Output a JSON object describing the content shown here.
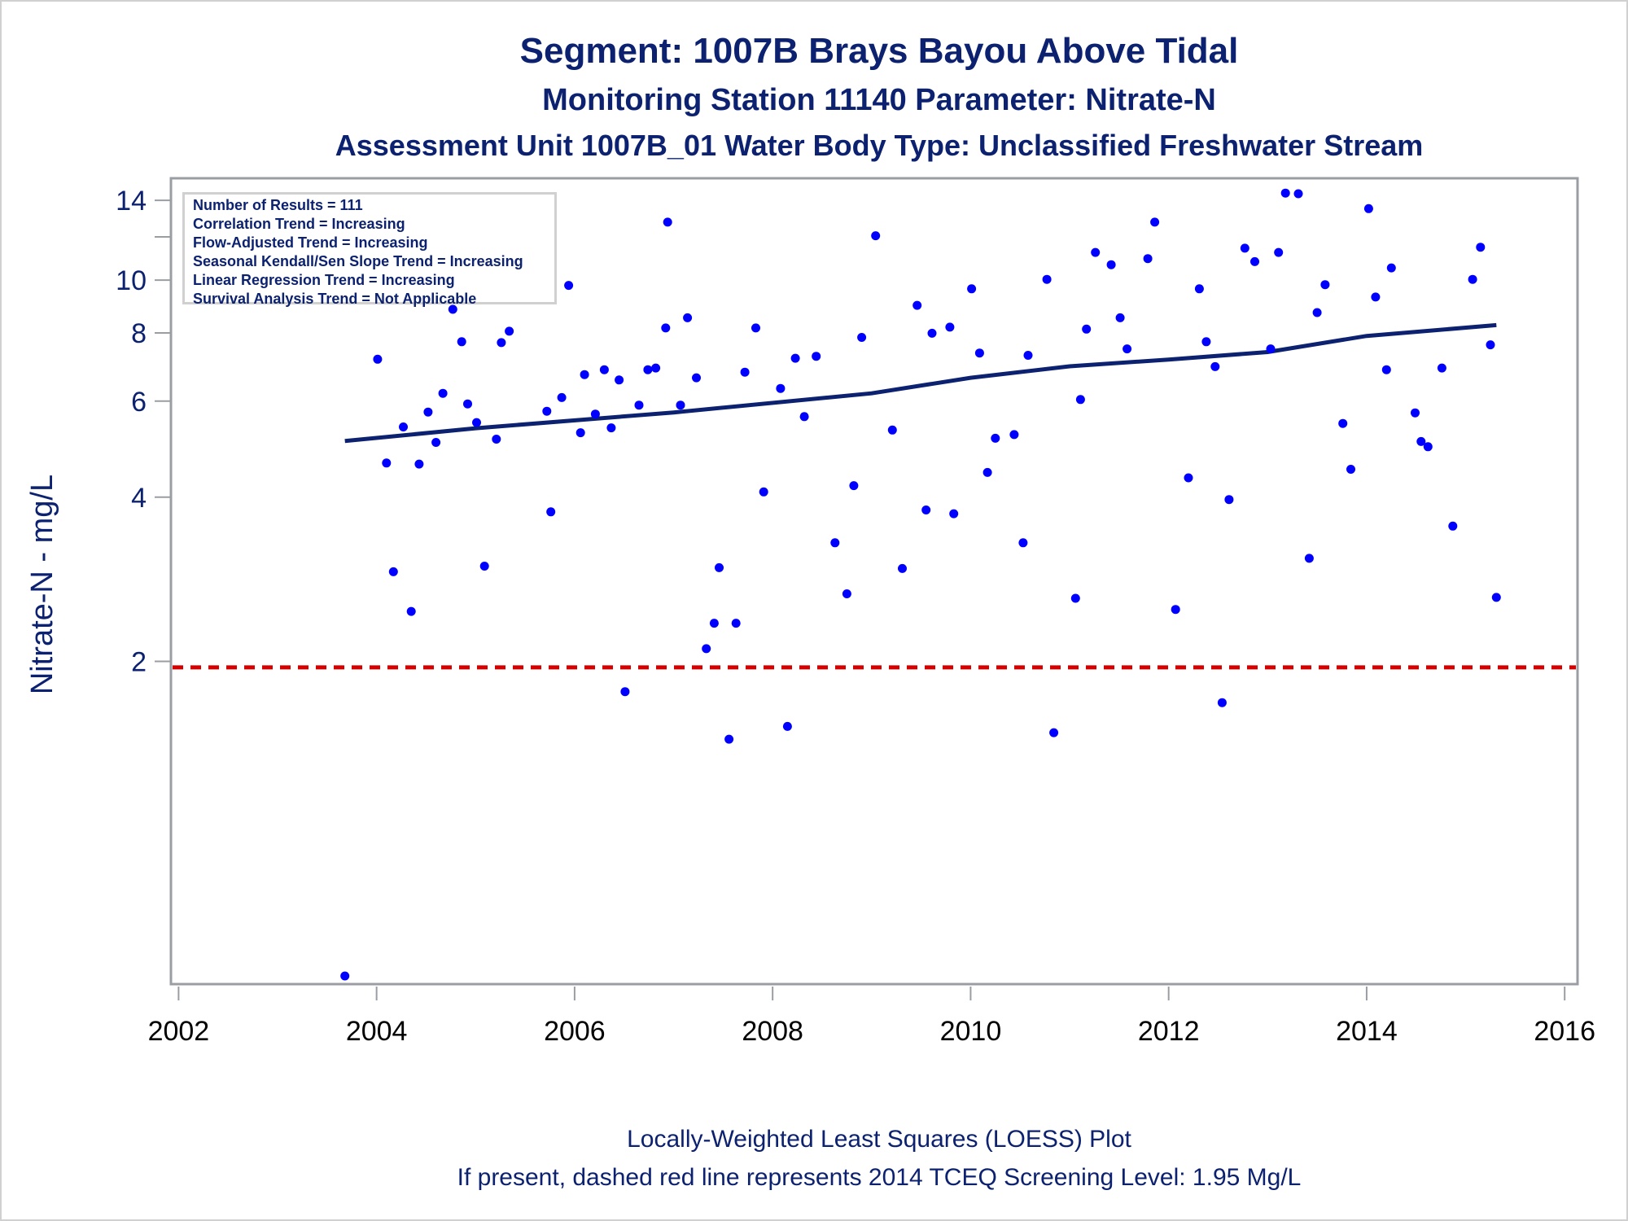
{
  "chart_data": {
    "type": "scatter",
    "title": "Segment: 1007B  Brays Bayou Above Tidal",
    "subtitle": "Monitoring Station 11140 Parameter: Nitrate-N",
    "subtitle2": "Assessment Unit 1007B_01   Water Body Type: Unclassified Freshwater Stream",
    "xlabel": "",
    "ylabel": "Nitrate-N - mg/L",
    "yscale": "log",
    "xlim": [
      2002,
      2016
    ],
    "ylim": [
      0.5,
      15.2
    ],
    "x_ticks": [
      2002,
      2004,
      2006,
      2008,
      2010,
      2012,
      2014,
      2016
    ],
    "x_tick_labels": [
      "2002",
      "2004",
      "2006",
      "2008",
      "2010",
      "2012",
      "2014",
      "2016"
    ],
    "y_ticks": [
      2,
      4,
      6,
      8,
      10,
      12,
      14
    ],
    "y_tick_labels": [
      "2",
      "4",
      "6",
      "8",
      "10",
      "",
      "14"
    ],
    "grid": false,
    "legend_box": {
      "placement": "top-left",
      "lines": [
        "Number of Results = 111",
        "Correlation Trend = Increasing",
        "Flow-Adjusted Trend = Increasing",
        "Seasonal Kendall/Sen Slope Trend = Increasing",
        "Linear Regression Trend = Increasing",
        "Survival Analysis Trend = Not Applicable"
      ]
    },
    "series": [
      {
        "name": "Nitrate-N results",
        "type": "scatter",
        "color": "#0000ff",
        "points": [
          [
            2003.68,
            0.53
          ],
          [
            2004.01,
            7.16
          ],
          [
            2004.1,
            4.62
          ],
          [
            2004.17,
            2.92
          ],
          [
            2004.27,
            5.38
          ],
          [
            2004.35,
            2.47
          ],
          [
            2004.43,
            4.6
          ],
          [
            2004.52,
            5.73
          ],
          [
            2004.6,
            5.04
          ],
          [
            2004.67,
            6.2
          ],
          [
            2004.77,
            8.84
          ],
          [
            2004.86,
            7.71
          ],
          [
            2004.92,
            5.93
          ],
          [
            2005.01,
            5.48
          ],
          [
            2005.09,
            2.99
          ],
          [
            2005.21,
            5.11
          ],
          [
            2005.26,
            7.68
          ],
          [
            2005.34,
            8.06
          ],
          [
            2005.72,
            5.75
          ],
          [
            2005.76,
            3.76
          ],
          [
            2005.87,
            6.09
          ],
          [
            2005.94,
            9.78
          ],
          [
            2006.06,
            5.25
          ],
          [
            2006.1,
            6.71
          ],
          [
            2006.21,
            5.68
          ],
          [
            2006.3,
            6.85
          ],
          [
            2006.37,
            5.36
          ],
          [
            2006.45,
            6.56
          ],
          [
            2006.51,
            1.76
          ],
          [
            2006.65,
            5.9
          ],
          [
            2006.74,
            6.85
          ],
          [
            2006.82,
            6.9
          ],
          [
            2006.92,
            8.17
          ],
          [
            2006.94,
            12.77
          ],
          [
            2007.07,
            5.9
          ],
          [
            2007.14,
            8.53
          ],
          [
            2007.23,
            6.62
          ],
          [
            2007.33,
            2.11
          ],
          [
            2007.41,
            2.35
          ],
          [
            2007.46,
            2.97
          ],
          [
            2007.56,
            1.44
          ],
          [
            2007.63,
            2.35
          ],
          [
            2007.72,
            6.78
          ],
          [
            2007.83,
            8.17
          ],
          [
            2007.91,
            4.09
          ],
          [
            2008.08,
            6.33
          ],
          [
            2008.15,
            1.52
          ],
          [
            2008.23,
            7.19
          ],
          [
            2008.32,
            5.62
          ],
          [
            2008.44,
            7.25
          ],
          [
            2008.63,
            3.3
          ],
          [
            2008.75,
            2.66
          ],
          [
            2008.82,
            4.2
          ],
          [
            2008.9,
            7.85
          ],
          [
            2009.04,
            12.06
          ],
          [
            2009.21,
            5.31
          ],
          [
            2009.31,
            2.96
          ],
          [
            2009.46,
            8.99
          ],
          [
            2009.55,
            3.79
          ],
          [
            2009.61,
            7.99
          ],
          [
            2009.79,
            8.2
          ],
          [
            2009.83,
            3.73
          ],
          [
            2010.01,
            9.64
          ],
          [
            2010.09,
            7.35
          ],
          [
            2010.17,
            4.44
          ],
          [
            2010.25,
            5.13
          ],
          [
            2010.44,
            5.21
          ],
          [
            2010.53,
            3.3
          ],
          [
            2010.58,
            7.28
          ],
          [
            2010.77,
            10.03
          ],
          [
            2010.84,
            1.48
          ],
          [
            2011.06,
            2.61
          ],
          [
            2011.11,
            6.04
          ],
          [
            2011.17,
            8.13
          ],
          [
            2011.26,
            11.24
          ],
          [
            2011.42,
            10.67
          ],
          [
            2011.51,
            8.53
          ],
          [
            2011.58,
            7.48
          ],
          [
            2011.79,
            10.95
          ],
          [
            2011.86,
            12.77
          ],
          [
            2012.07,
            2.49
          ],
          [
            2012.2,
            4.34
          ],
          [
            2012.31,
            9.64
          ],
          [
            2012.38,
            7.71
          ],
          [
            2012.47,
            6.94
          ],
          [
            2012.54,
            1.68
          ],
          [
            2012.61,
            3.96
          ],
          [
            2012.77,
            11.44
          ],
          [
            2012.87,
            10.81
          ],
          [
            2013.03,
            7.48
          ],
          [
            2013.11,
            11.24
          ],
          [
            2013.18,
            14.44
          ],
          [
            2013.31,
            14.4
          ],
          [
            2013.42,
            3.09
          ],
          [
            2013.5,
            8.72
          ],
          [
            2013.58,
            9.81
          ],
          [
            2013.76,
            5.46
          ],
          [
            2013.84,
            4.5
          ],
          [
            2014.02,
            13.52
          ],
          [
            2014.09,
            9.31
          ],
          [
            2014.2,
            6.85
          ],
          [
            2014.25,
            10.53
          ],
          [
            2014.49,
            5.71
          ],
          [
            2014.55,
            5.06
          ],
          [
            2014.62,
            4.95
          ],
          [
            2014.76,
            6.9
          ],
          [
            2014.87,
            3.54
          ],
          [
            2015.07,
            10.03
          ],
          [
            2015.15,
            11.49
          ],
          [
            2015.25,
            7.61
          ],
          [
            2015.31,
            2.62
          ]
        ]
      },
      {
        "name": "LOESS fit",
        "type": "line",
        "color": "#0c2270",
        "points": [
          [
            2003.68,
            5.07
          ],
          [
            2005.0,
            5.35
          ],
          [
            2007.0,
            5.72
          ],
          [
            2009.0,
            6.2
          ],
          [
            2010.0,
            6.62
          ],
          [
            2011.0,
            6.95
          ],
          [
            2012.0,
            7.15
          ],
          [
            2013.0,
            7.38
          ],
          [
            2014.0,
            7.9
          ],
          [
            2015.31,
            8.27
          ]
        ]
      },
      {
        "name": "2014 TCEQ Screening Level",
        "type": "hline",
        "style": "dashed",
        "color": "#d40000",
        "value": 1.95
      }
    ],
    "footnotes": [
      "Locally-Weighted Least Squares (LOESS) Plot",
      "If present, dashed red line represents 2014 TCEQ Screening Level: 1.95 Mg/L"
    ]
  }
}
